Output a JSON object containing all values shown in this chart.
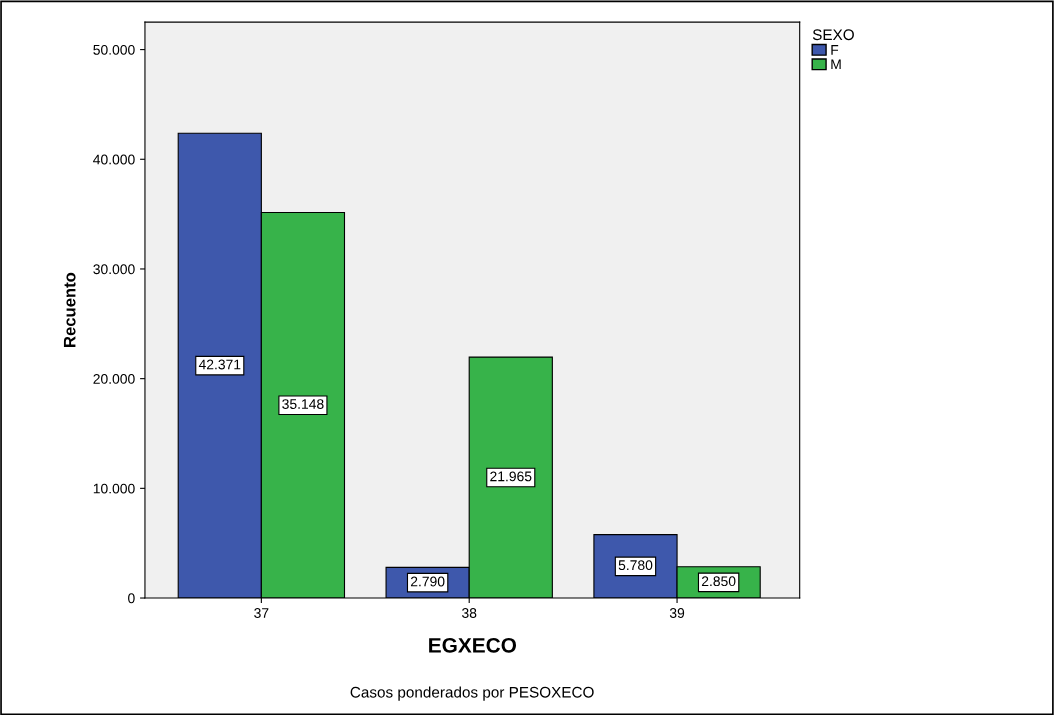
{
  "chart_data": {
    "type": "bar",
    "xlabel": "EGXECO",
    "ylabel": "Recuento",
    "legend_title": "SEXO",
    "categories": [
      "37",
      "38",
      "39"
    ],
    "series": [
      {
        "name": "F",
        "color": "#3e58ac",
        "values": [
          42371,
          2790,
          5780
        ],
        "value_labels": [
          "42.371",
          "2.790",
          "5.780"
        ]
      },
      {
        "name": "M",
        "color": "#37b34a",
        "values": [
          35148,
          21965,
          2850
        ],
        "value_labels": [
          "35.148",
          "21.965",
          "2.850"
        ]
      }
    ],
    "ylim": [
      0,
      52500
    ],
    "yticks": [
      0,
      {
        "value": 10000,
        "label": "10.000"
      },
      {
        "value": 20000,
        "label": "20.000"
      },
      {
        "value": 30000,
        "label": "30.000"
      },
      {
        "value": 40000,
        "label": "40.000"
      },
      {
        "value": 50000,
        "label": "50.000"
      }
    ],
    "grid": false,
    "legend": "top right",
    "annotations": [
      "Casos ponderados por PESOXECO"
    ]
  }
}
